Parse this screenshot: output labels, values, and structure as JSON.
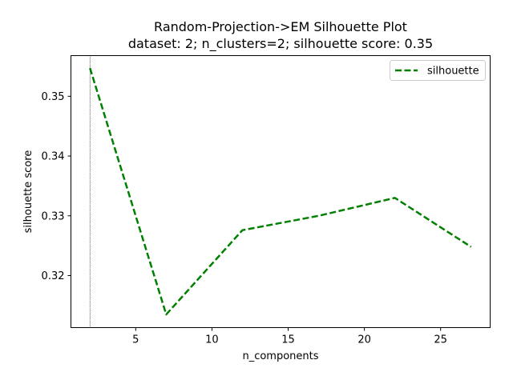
{
  "chart_data": {
    "type": "line",
    "title": "Random-Projection->EM Silhouette Plot",
    "subtitle": "dataset: 2; n_clusters=2; silhouette score: 0.35",
    "xlabel": "n_components",
    "ylabel": "silhouette score",
    "xlim": [
      0.75,
      28.25
    ],
    "ylim": [
      0.3113,
      0.3568
    ],
    "xticks": [
      5,
      10,
      15,
      20,
      25
    ],
    "yticks": [
      0.32,
      0.33,
      0.34,
      0.35
    ],
    "xtick_labels": [
      "5",
      "10",
      "15",
      "20",
      "25"
    ],
    "ytick_labels": [
      "0.32",
      "0.33",
      "0.34",
      "0.35"
    ],
    "grid": false,
    "legend_position": "top-right",
    "vline": {
      "x": 2,
      "style": "dotted",
      "color": "#000000"
    },
    "series": [
      {
        "name": "silhouette",
        "color": "#008000",
        "style": "dashed",
        "x": [
          2,
          7,
          12,
          17,
          22,
          27
        ],
        "y": [
          0.3547,
          0.3135,
          0.3276,
          0.33,
          0.333,
          0.3248
        ]
      }
    ]
  }
}
